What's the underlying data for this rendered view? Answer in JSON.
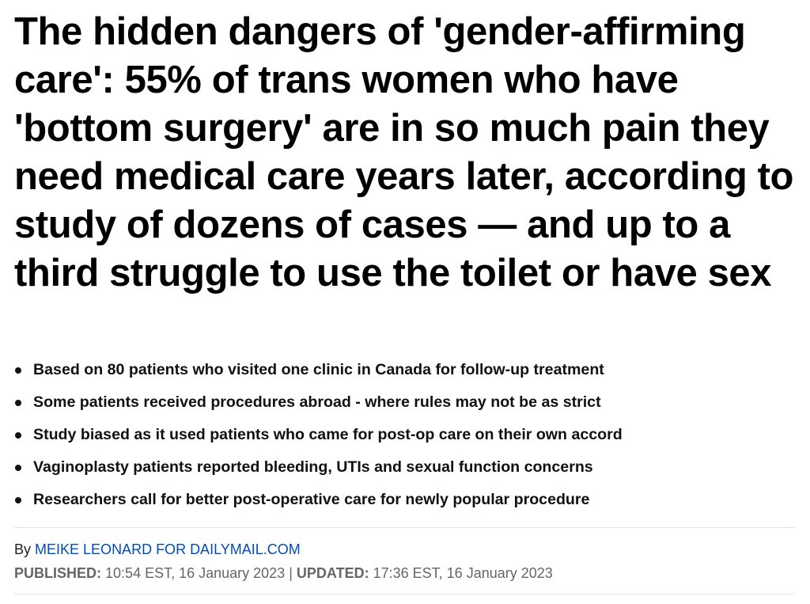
{
  "headline": "The hidden dangers of 'gender-affirming care': 55% of trans women who have 'bottom surgery' are in so much pain they need medical care years later, according to study of dozens of cases — and up to a third struggle to use the toilet or have sex",
  "bullets": [
    "Based on 80 patients who visited one clinic in Canada for follow-up treatment",
    "Some patients received procedures abroad - where rules may not be as strict",
    "Study biased as it used patients who came for post-op care on their own accord",
    "Vaginoplasty patients reported bleeding, UTIs and sexual function concerns",
    "Researchers call for better post-operative care for newly popular procedure"
  ],
  "byline": {
    "prefix": "By",
    "author": "MEIKE LEONARD FOR DAILYMAIL.COM"
  },
  "dates": {
    "published_label": "PUBLISHED:",
    "published_value": "10:54 EST, 16 January 2023",
    "separator": "|",
    "updated_label": "UPDATED:",
    "updated_value": "17:36 EST, 16 January 2023"
  },
  "colors": {
    "author_link": "#004db3",
    "meta_text": "#666666"
  }
}
